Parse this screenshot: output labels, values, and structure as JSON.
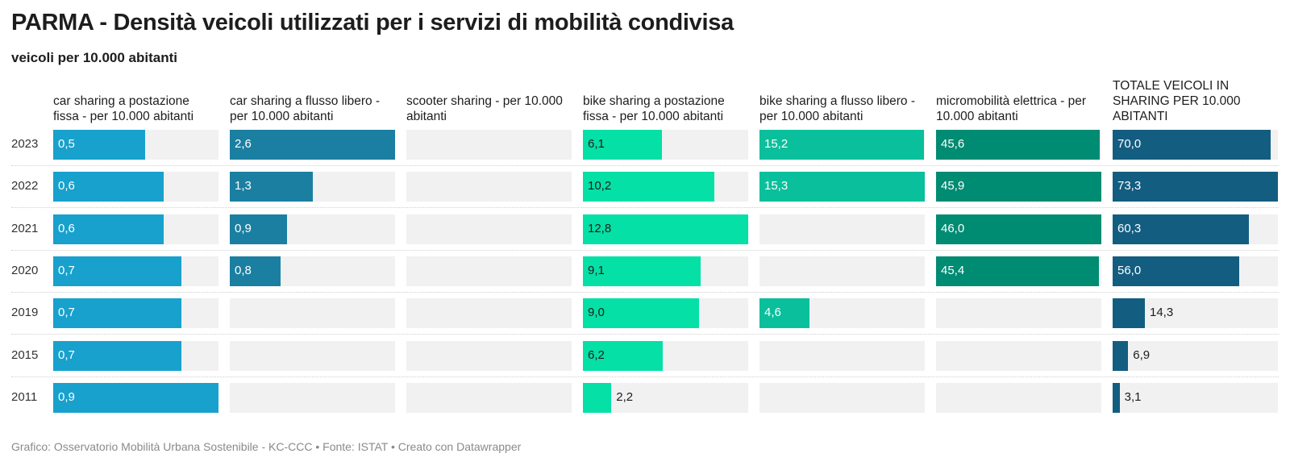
{
  "title": "PARMA - Densità veicoli utilizzati per i servizi di mobilità condivisa",
  "subtitle": "veicoli per 10.000 abitanti",
  "footer": "Grafico: Osservatorio Mobilità Urbana Sostenibile - KC-CCC • Fonte: ISTAT • Creato con Datawrapper",
  "chart_data": {
    "type": "bar",
    "orientation": "horizontal",
    "layout": "small-multiples",
    "categories": [
      "2023",
      "2022",
      "2021",
      "2020",
      "2019",
      "2015",
      "2011"
    ],
    "series": [
      {
        "name": "car sharing a postazione fissa - per 10.000 abitanti",
        "color": "#18a1cd",
        "values": [
          0.5,
          0.6,
          0.6,
          0.7,
          0.7,
          0.7,
          0.9
        ],
        "labels": [
          "0,5",
          "0,6",
          "0,6",
          "0,7",
          "0,7",
          "0,7",
          "0,9"
        ]
      },
      {
        "name": "car sharing a flusso libero - per 10.000 abitanti",
        "color": "#1b7fa1",
        "values": [
          2.6,
          1.3,
          0.9,
          0.8,
          null,
          null,
          null
        ],
        "labels": [
          "2,6",
          "1,3",
          "0,9",
          "0,8",
          "",
          "",
          ""
        ]
      },
      {
        "name": "scooter sharing - per 10.000 abitanti",
        "color": "#2a9db0",
        "values": [
          null,
          null,
          null,
          null,
          null,
          null,
          null
        ],
        "labels": [
          "",
          "",
          "",
          "",
          "",
          "",
          ""
        ]
      },
      {
        "name": "bike sharing a postazione fissa - per 10.000 abitanti",
        "color": "#05e0a6",
        "values": [
          6.1,
          10.2,
          12.8,
          9.1,
          9.0,
          6.2,
          2.2
        ],
        "labels": [
          "6,1",
          "10,2",
          "12,8",
          "9,1",
          "9,0",
          "6,2",
          "2,2"
        ]
      },
      {
        "name": "bike sharing a flusso libero - per 10.000 abitanti",
        "color": "#0abf9c",
        "values": [
          15.2,
          15.3,
          null,
          null,
          4.6,
          null,
          null
        ],
        "labels": [
          "15,2",
          "15,3",
          "",
          "",
          "4,6",
          "",
          ""
        ]
      },
      {
        "name": "micromobilità elettrica - per 10.000 abitanti",
        "color": "#008b73",
        "values": [
          45.6,
          45.9,
          46.0,
          45.4,
          null,
          null,
          null
        ],
        "labels": [
          "45,6",
          "45,9",
          "46,0",
          "45,4",
          "",
          "",
          ""
        ]
      },
      {
        "name": "TOTALE VEICOLI IN SHARING PER 10.000 ABITANTI",
        "color": "#135d80",
        "values": [
          70.0,
          73.3,
          60.3,
          56.0,
          14.3,
          6.9,
          3.1
        ],
        "labels": [
          "70,0",
          "73,3",
          "60,3",
          "56,0",
          "14,3",
          "6,9",
          "3,1"
        ]
      }
    ],
    "grid": false,
    "legend": "none"
  }
}
